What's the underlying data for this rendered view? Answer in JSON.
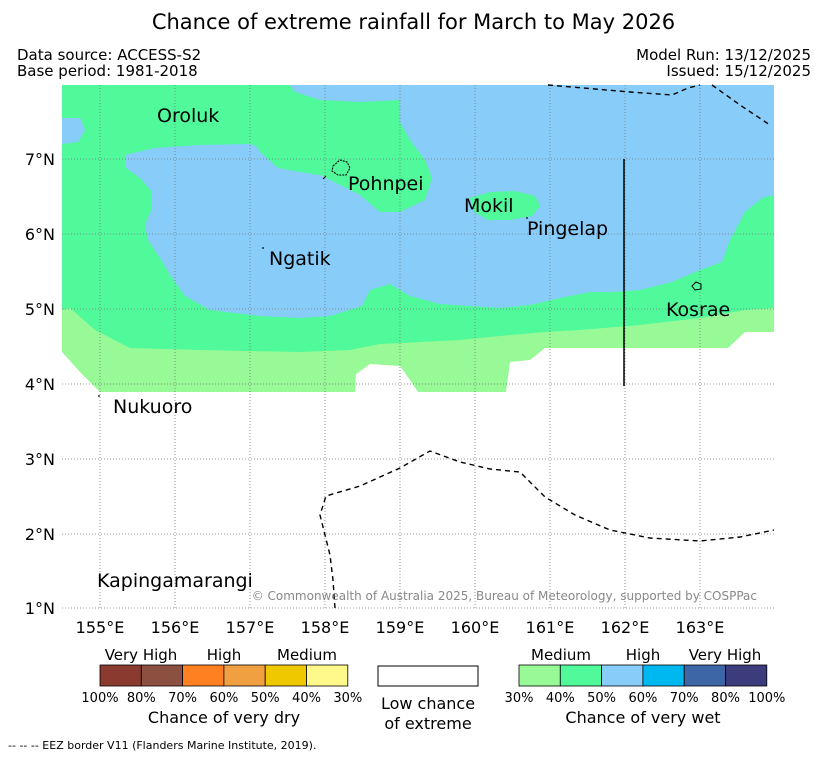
{
  "title": "Chance of extreme rainfall for March to May 2026",
  "meta": {
    "data_source": "Data source: ACCESS-S2",
    "base_period": "Base period: 1981-2018",
    "model_run": "Model Run: 13/12/2025",
    "issued": "Issued: 15/12/2025"
  },
  "axes": {
    "lat_labels": [
      "7°N",
      "6°N",
      "5°N",
      "4°N",
      "3°N",
      "2°N",
      "1°N"
    ],
    "lon_labels": [
      "155°E",
      "156°E",
      "157°E",
      "158°E",
      "159°E",
      "160°E",
      "161°E",
      "162°E",
      "163°E"
    ]
  },
  "places": {
    "oroluk": "Oroluk",
    "pohnpei": "Pohnpei",
    "mokil": "Mokil",
    "pingelap": "Pingelap",
    "ngatik": "Ngatik",
    "kosrae": "Kosrae",
    "nukuoro": "Nukuoro",
    "kapingamarangi": "Kapingamarangi"
  },
  "copyright": "© Commonwealth of Australia 2025, Bureau of Meteorology, supported by COSPPac",
  "legend": {
    "dry": {
      "groups": [
        "Very High",
        "High",
        "Medium"
      ],
      "ticks": [
        "100%",
        "80%",
        "70%",
        "60%",
        "50%",
        "40%",
        "30%"
      ],
      "title": "Chance of very dry",
      "colors": [
        "#8b3a30",
        "#8c5040",
        "#ff8020",
        "#f0a040",
        "#f0c800",
        "#fff88a"
      ]
    },
    "low": {
      "title_line1": "Low chance",
      "title_line2": "of extreme"
    },
    "wet": {
      "groups": [
        "Medium",
        "High",
        "Very High"
      ],
      "ticks": [
        "30%",
        "40%",
        "50%",
        "60%",
        "70%",
        "80%",
        "100%"
      ],
      "title": "Chance of very wet",
      "colors": [
        "#98fa96",
        "#50fa9a",
        "#88ccfa",
        "#00b8f0",
        "#3c66a6",
        "#3c3c7c"
      ]
    }
  },
  "eez_note": "--  --  -- EEZ border V11 (Flanders Marine Institute, 2019).",
  "colors": {
    "medium_wet": "#98fa96",
    "medium_high_wet": "#50fa9a",
    "high_wet": "#88ccfa"
  }
}
